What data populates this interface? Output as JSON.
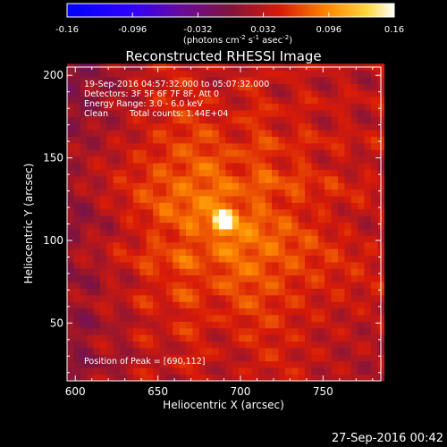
{
  "colorbar": {
    "min_label": "-0.16",
    "max_label": "0.16",
    "tick_labels": [
      "-0.16",
      "-0.096",
      "-0.032",
      "0.032",
      "0.096",
      "0.16"
    ],
    "tick_values": [
      -0.16,
      -0.096,
      -0.032,
      0.032,
      0.096,
      0.16
    ],
    "units": "(photons cm",
    "units_sup1": "-2",
    "units_mid": " s",
    "units_sup2": "-1",
    "units_tail": " asec",
    "units_sup3": "-2",
    "units_close": ")"
  },
  "annotations": {
    "time_range": "19-Sep-2016 04:57:32.000 to 05:07:32.000",
    "detectors": "Detectors: 3F 5F 6F 7F 8F, Att 0",
    "energy": "Energy Range: 3.0 - 6.0 keV",
    "method": "Clean",
    "counts": "Total counts: 1.44E+04",
    "peak": "Position of Peak = [690,112]"
  },
  "footer": {
    "timestamp": "27-Sep-2016 00:42"
  },
  "colors": {
    "background": "#000000",
    "axes": "#ffffff",
    "colormap": [
      "#0000ff",
      "#5a00c8",
      "#7a1e6e",
      "#ff2000",
      "#ff9a00",
      "#ffffb0"
    ]
  },
  "chart_data": {
    "type": "heatmap",
    "title": "Reconstructed RHESSI Image",
    "xlabel": "Heliocentric X (arcsec)",
    "ylabel": "Heliocentric Y (arcsec)",
    "xlim": [
      595,
      785
    ],
    "ylim": [
      15,
      205
    ],
    "xticks": [
      600,
      650,
      700,
      750
    ],
    "yticks": [
      50,
      100,
      150,
      200
    ],
    "xtick_labels": [
      "600",
      "650",
      "700",
      "750"
    ],
    "ytick_labels": [
      "50",
      "100",
      "150",
      "200"
    ],
    "grid": false,
    "colorscale_range": [
      -0.16,
      0.16
    ],
    "peak_position": [
      690,
      112
    ],
    "peak_value": 0.16,
    "source_fwhm_arcsec": 10,
    "background_level": 0.03,
    "pixel_size_arcsec": 4,
    "legend": "colorbar-top"
  }
}
